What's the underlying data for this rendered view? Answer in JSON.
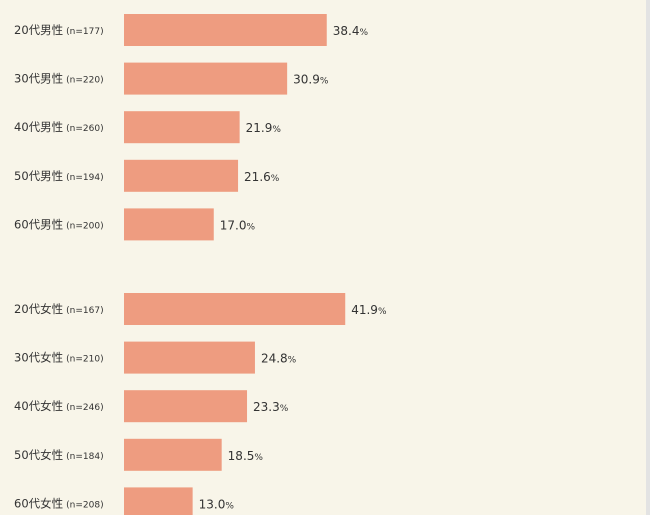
{
  "chart_data": {
    "type": "bar",
    "orientation": "horizontal",
    "categories": [
      {
        "label": "20代男性",
        "n": "(n=177)"
      },
      {
        "label": "30代男性",
        "n": "(n=220)"
      },
      {
        "label": "40代男性",
        "n": "(n=260)"
      },
      {
        "label": "50代男性",
        "n": "(n=194)"
      },
      {
        "label": "60代男性",
        "n": "(n=200)"
      },
      {
        "label": "20代女性",
        "n": "(n=167)"
      },
      {
        "label": "30代女性",
        "n": "(n=210)"
      },
      {
        "label": "40代女性",
        "n": "(n=246)"
      },
      {
        "label": "50代女性",
        "n": "(n=184)"
      },
      {
        "label": "60代女性",
        "n": "(n=208)"
      }
    ],
    "values": [
      38.4,
      30.9,
      21.9,
      21.6,
      17.0,
      41.9,
      24.8,
      23.3,
      18.5,
      13.0
    ],
    "value_labels": [
      "38.4",
      "30.9",
      "21.9",
      "21.6",
      "17.0",
      "41.9",
      "24.8",
      "23.3",
      "18.5",
      "13.0"
    ],
    "unit": "%",
    "xlim": [
      0,
      100
    ],
    "grid": false,
    "colors": {
      "bar": "#ee9c80",
      "background": "#f8f5e9",
      "text": "#333333"
    }
  }
}
